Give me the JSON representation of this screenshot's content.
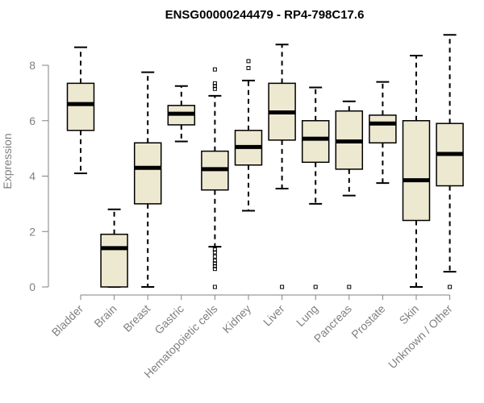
{
  "chart_data": {
    "type": "boxplot",
    "title": "ENSG00000244479 - RP4-798C17.6",
    "xlabel": "",
    "ylabel": "Expression",
    "ylim": [
      0,
      9.2
    ],
    "yticks": [
      0,
      2,
      4,
      6,
      8
    ],
    "box_fill": "#ede8d0",
    "box_stroke": "#000000",
    "axis_color": "#808080",
    "categories": [
      "Bladder",
      "Brain",
      "Breast",
      "Gastric",
      "Hematopoietic cells",
      "Kidney",
      "Liver",
      "Lung",
      "Pancreas",
      "Prostate",
      "Skin",
      "Unknown / Other"
    ],
    "boxes": [
      {
        "name": "Bladder",
        "min": 4.1,
        "q1": 5.65,
        "median": 6.6,
        "q3": 7.35,
        "max": 8.65,
        "outliers": []
      },
      {
        "name": "Brain",
        "min": 0.0,
        "q1": 0.0,
        "median": 1.4,
        "q3": 1.9,
        "max": 2.8,
        "outliers": []
      },
      {
        "name": "Breast",
        "min": 0.0,
        "q1": 3.0,
        "median": 4.3,
        "q3": 5.2,
        "max": 7.75,
        "outliers": []
      },
      {
        "name": "Gastric",
        "min": 5.25,
        "q1": 5.85,
        "median": 6.25,
        "q3": 6.55,
        "max": 7.25,
        "outliers": []
      },
      {
        "name": "Hematopoietic cells",
        "min": 1.45,
        "q1": 3.5,
        "median": 4.25,
        "q3": 4.9,
        "max": 6.9,
        "outliers": [
          7.85,
          7.35,
          7.25,
          7.15,
          1.35,
          1.25,
          1.1,
          0.95,
          0.85,
          0.75,
          0.65,
          0.0
        ]
      },
      {
        "name": "Kidney",
        "min": 2.75,
        "q1": 4.4,
        "median": 5.05,
        "q3": 5.65,
        "max": 7.45,
        "outliers": [
          8.15,
          7.9
        ]
      },
      {
        "name": "Liver",
        "min": 3.55,
        "q1": 5.3,
        "median": 6.3,
        "q3": 7.35,
        "max": 8.75,
        "outliers": [
          0.0
        ]
      },
      {
        "name": "Lung",
        "min": 3.0,
        "q1": 4.5,
        "median": 5.35,
        "q3": 6.0,
        "max": 7.2,
        "outliers": [
          0.0
        ]
      },
      {
        "name": "Pancreas",
        "min": 3.3,
        "q1": 4.25,
        "median": 5.25,
        "q3": 6.35,
        "max": 6.7,
        "outliers": [
          0.0
        ]
      },
      {
        "name": "Prostate",
        "min": 3.75,
        "q1": 5.2,
        "median": 5.9,
        "q3": 6.2,
        "max": 7.4,
        "outliers": []
      },
      {
        "name": "Skin",
        "min": 0.0,
        "q1": 2.4,
        "median": 3.85,
        "q3": 6.0,
        "max": 8.35,
        "outliers": []
      },
      {
        "name": "Unknown / Other",
        "min": 0.55,
        "q1": 3.65,
        "median": 4.8,
        "q3": 5.9,
        "max": 9.1,
        "outliers": [
          0.0
        ]
      }
    ]
  }
}
